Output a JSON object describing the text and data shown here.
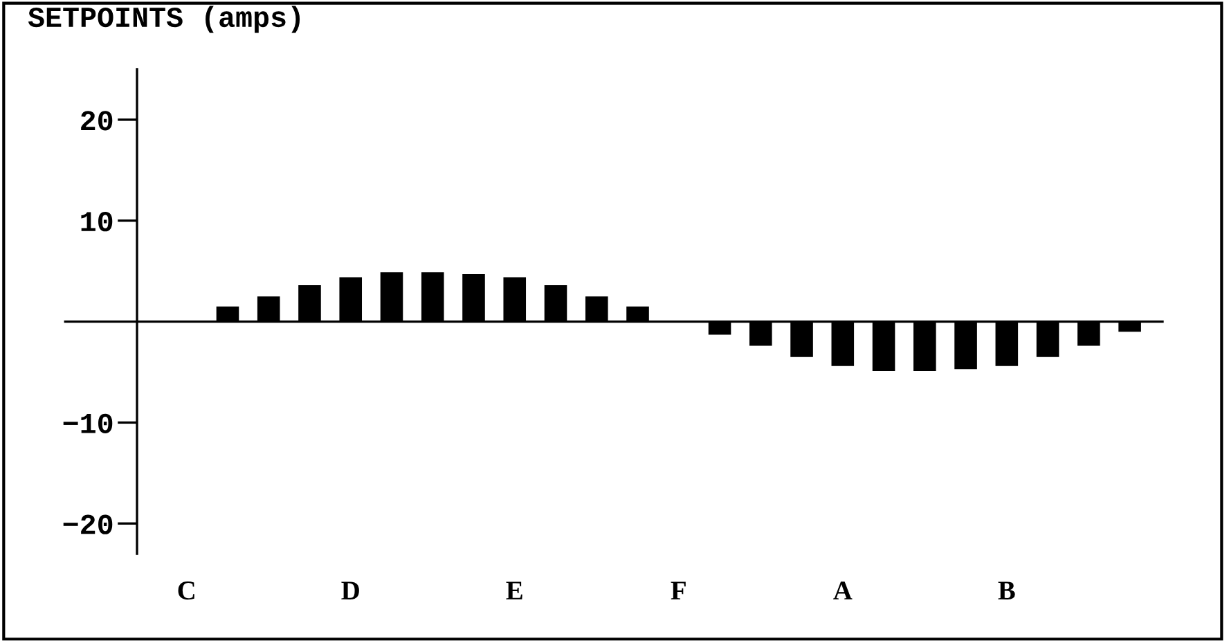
{
  "chart_data": {
    "type": "bar",
    "title": "SETPOINTS (amps)",
    "categories": [
      "C",
      null,
      null,
      null,
      "D",
      null,
      null,
      null,
      "E",
      null,
      null,
      null,
      "F",
      null,
      null,
      null,
      "A",
      null,
      null,
      null,
      "B",
      null,
      null,
      null
    ],
    "values": [
      0,
      1.5,
      2.5,
      3.6,
      4.4,
      4.9,
      4.9,
      4.7,
      4.4,
      3.6,
      2.5,
      1.5,
      0,
      -1.3,
      -2.4,
      -3.5,
      -4.4,
      -4.9,
      -4.9,
      -4.7,
      -4.4,
      -3.5,
      -2.4,
      -1.0
    ],
    "color": "#000000",
    "ylim": [
      -23,
      25
    ],
    "yticks": [
      20,
      10,
      {
        "value": -10,
        "label": "−10"
      },
      {
        "value": -20,
        "label": "−20"
      }
    ],
    "grid": false,
    "legend": false
  }
}
